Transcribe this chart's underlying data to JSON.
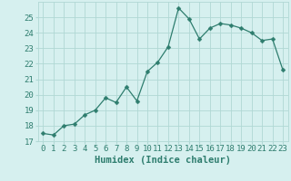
{
  "x": [
    0,
    1,
    2,
    3,
    4,
    5,
    6,
    7,
    8,
    9,
    10,
    11,
    12,
    13,
    14,
    15,
    16,
    17,
    18,
    19,
    20,
    21,
    22,
    23
  ],
  "y": [
    17.5,
    17.4,
    18.0,
    18.1,
    18.7,
    19.0,
    19.8,
    19.5,
    20.5,
    19.6,
    21.5,
    22.1,
    23.1,
    25.6,
    24.9,
    23.6,
    24.3,
    24.6,
    24.5,
    24.3,
    24.0,
    23.5,
    23.6,
    21.6
  ],
  "line_color": "#2e7d6e",
  "marker": "D",
  "marker_size": 2.5,
  "bg_color": "#d6f0ef",
  "grid_color": "#b0d8d4",
  "xlabel": "Humidex (Indice chaleur)",
  "xlim": [
    -0.5,
    23.5
  ],
  "ylim": [
    17,
    26
  ],
  "yticks": [
    17,
    18,
    19,
    20,
    21,
    22,
    23,
    24,
    25
  ],
  "xticks": [
    0,
    1,
    2,
    3,
    4,
    5,
    6,
    7,
    8,
    9,
    10,
    11,
    12,
    13,
    14,
    15,
    16,
    17,
    18,
    19,
    20,
    21,
    22,
    23
  ],
  "xtick_labels": [
    "0",
    "1",
    "2",
    "3",
    "4",
    "5",
    "6",
    "7",
    "8",
    "9",
    "10",
    "11",
    "12",
    "13",
    "14",
    "15",
    "16",
    "17",
    "18",
    "19",
    "20",
    "21",
    "22",
    "23"
  ],
  "tick_color": "#2e7d6e",
  "label_fontsize": 7.5,
  "tick_fontsize": 6.5
}
